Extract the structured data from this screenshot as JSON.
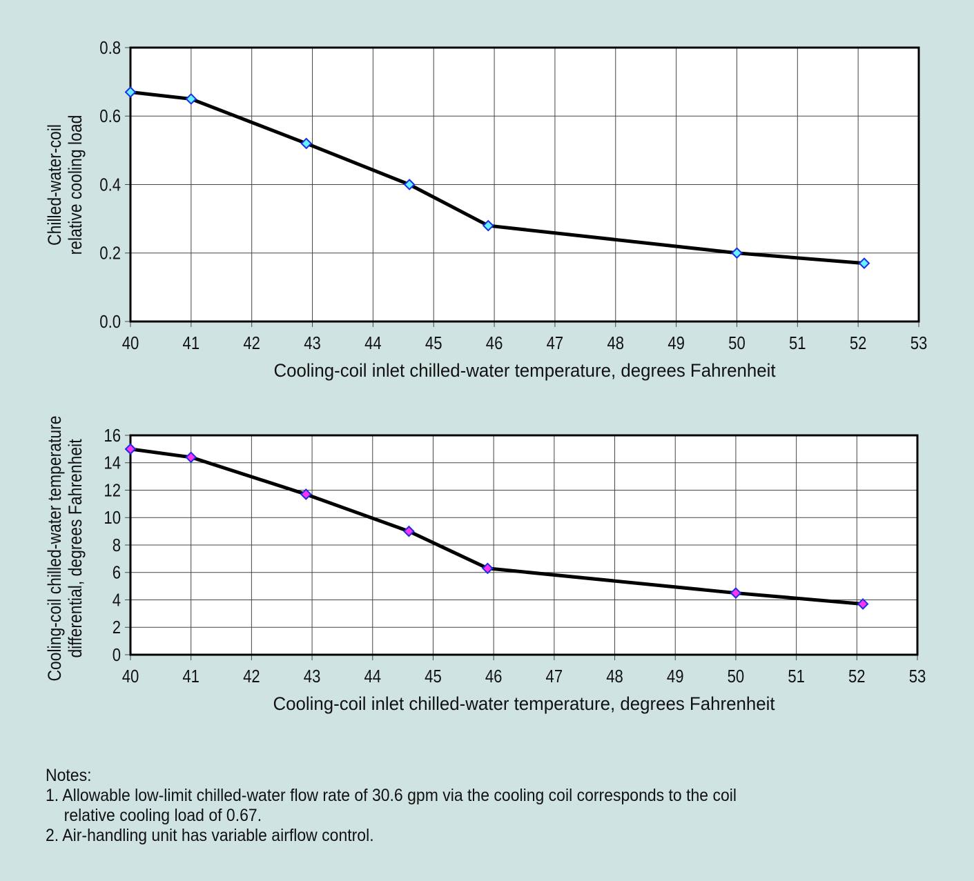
{
  "chart_data": [
    {
      "type": "line",
      "xlabel": "Cooling-coil inlet chilled-water temperature, degrees Fahrenheit",
      "ylabel": [
        "Chilled-water-coil",
        "relative cooling load"
      ],
      "xlim": [
        40,
        53
      ],
      "ylim": [
        0,
        0.8
      ],
      "xticks": [
        40,
        41,
        42,
        43,
        44,
        45,
        46,
        47,
        48,
        49,
        50,
        51,
        52,
        53
      ],
      "yticks": [
        "0.0",
        "0.2",
        "0.4",
        "0.6",
        "0.8"
      ],
      "grid": true,
      "x": [
        40,
        41,
        42.9,
        44.6,
        45.9,
        50,
        52.1
      ],
      "y": [
        0.67,
        0.65,
        0.52,
        0.4,
        0.28,
        0.2,
        0.17
      ],
      "line_color": "#000000",
      "marker": "diamond",
      "marker_fill": "#66f2ff",
      "marker_stroke": "#1a2ee6"
    },
    {
      "type": "line",
      "xlabel": "Cooling-coil inlet chilled-water temperature, degrees Fahrenheit",
      "ylabel": [
        "Cooling-coil chilled-water temperature",
        "differential, degrees Fahrenheit"
      ],
      "xlim": [
        40,
        53
      ],
      "ylim": [
        0,
        16
      ],
      "xticks": [
        40,
        41,
        42,
        43,
        44,
        45,
        46,
        47,
        48,
        49,
        50,
        51,
        52,
        53
      ],
      "yticks": [
        "0",
        "2",
        "4",
        "6",
        "8",
        "10",
        "12",
        "14",
        "16"
      ],
      "grid": true,
      "x": [
        40,
        41,
        42.9,
        44.6,
        45.9,
        50,
        52.1
      ],
      "y": [
        15.0,
        14.4,
        11.7,
        9.0,
        6.3,
        4.5,
        3.7
      ],
      "line_color": "#000000",
      "marker": "diamond",
      "marker_fill": "#ff33ee",
      "marker_stroke": "#1a2ee6"
    }
  ],
  "notes": {
    "title": "Notes:",
    "items": [
      "1. Allowable low-limit chilled-water flow rate of 30.6 gpm via the cooling coil corresponds to the coil",
      "relative cooling load of 0.67.",
      "2. Air-handling unit has variable airflow control."
    ]
  }
}
